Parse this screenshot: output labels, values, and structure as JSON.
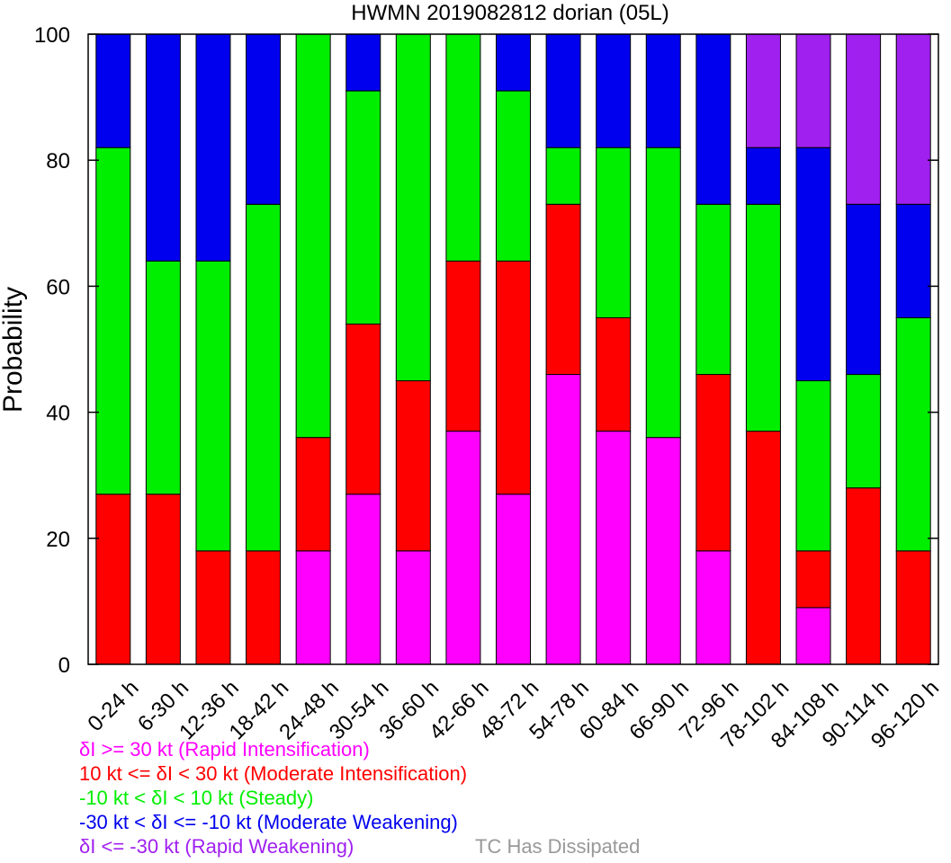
{
  "chart_data": {
    "type": "bar",
    "stacked": true,
    "title": "HWMN 2019082812 dorian (05L)",
    "ylabel": "Probability",
    "xlabel": "",
    "ylim": [
      0,
      100
    ],
    "yticks": [
      "0",
      "20",
      "40",
      "60",
      "80",
      "100"
    ],
    "categories": [
      "0-24 h",
      "6-30 h",
      "12-36 h",
      "18-42 h",
      "24-48 h",
      "30-54 h",
      "36-60 h",
      "42-66 h",
      "48-72 h",
      "54-78 h",
      "60-84 h",
      "66-90 h",
      "72-96 h",
      "78-102 h",
      "84-108 h",
      "90-114 h",
      "96-120 h"
    ],
    "series": [
      {
        "name": "δI >= 30 kt (Rapid Intensification)",
        "color": "#ff00ff",
        "values": [
          0,
          0,
          0,
          0,
          18,
          27,
          18,
          37,
          27,
          46,
          37,
          36,
          18,
          0,
          9,
          0,
          0
        ]
      },
      {
        "name": "10 kt <= δI < 30 kt (Moderate Intensification)",
        "color": "#ff0000",
        "values": [
          27,
          27,
          18,
          18,
          18,
          27,
          27,
          27,
          37,
          27,
          18,
          0,
          28,
          37,
          9,
          28,
          18
        ]
      },
      {
        "name": "-10 kt < δI < 10 kt (Steady)",
        "color": "#00ee00",
        "values": [
          55,
          37,
          46,
          55,
          64,
          37,
          55,
          36,
          27,
          9,
          27,
          46,
          27,
          36,
          27,
          18,
          37
        ]
      },
      {
        "name": "-30 kt < δI <= -10 kt (Moderate Weakening)",
        "color": "#0000ee",
        "values": [
          18,
          36,
          36,
          27,
          0,
          9,
          0,
          0,
          9,
          18,
          18,
          18,
          27,
          9,
          37,
          27,
          18
        ]
      },
      {
        "name": "δI <= -30 kt (Rapid Weakening)",
        "color": "#a020f0",
        "values": [
          0,
          0,
          0,
          0,
          0,
          0,
          0,
          0,
          0,
          0,
          0,
          0,
          0,
          18,
          18,
          27,
          27
        ]
      },
      {
        "name": "TC Has Dissipated",
        "color": "#999999",
        "values": [
          0,
          0,
          0,
          0,
          0,
          0,
          0,
          0,
          0,
          0,
          0,
          0,
          0,
          0,
          0,
          0,
          0
        ]
      }
    ],
    "grid": false,
    "legend_position": "bottom-left"
  }
}
